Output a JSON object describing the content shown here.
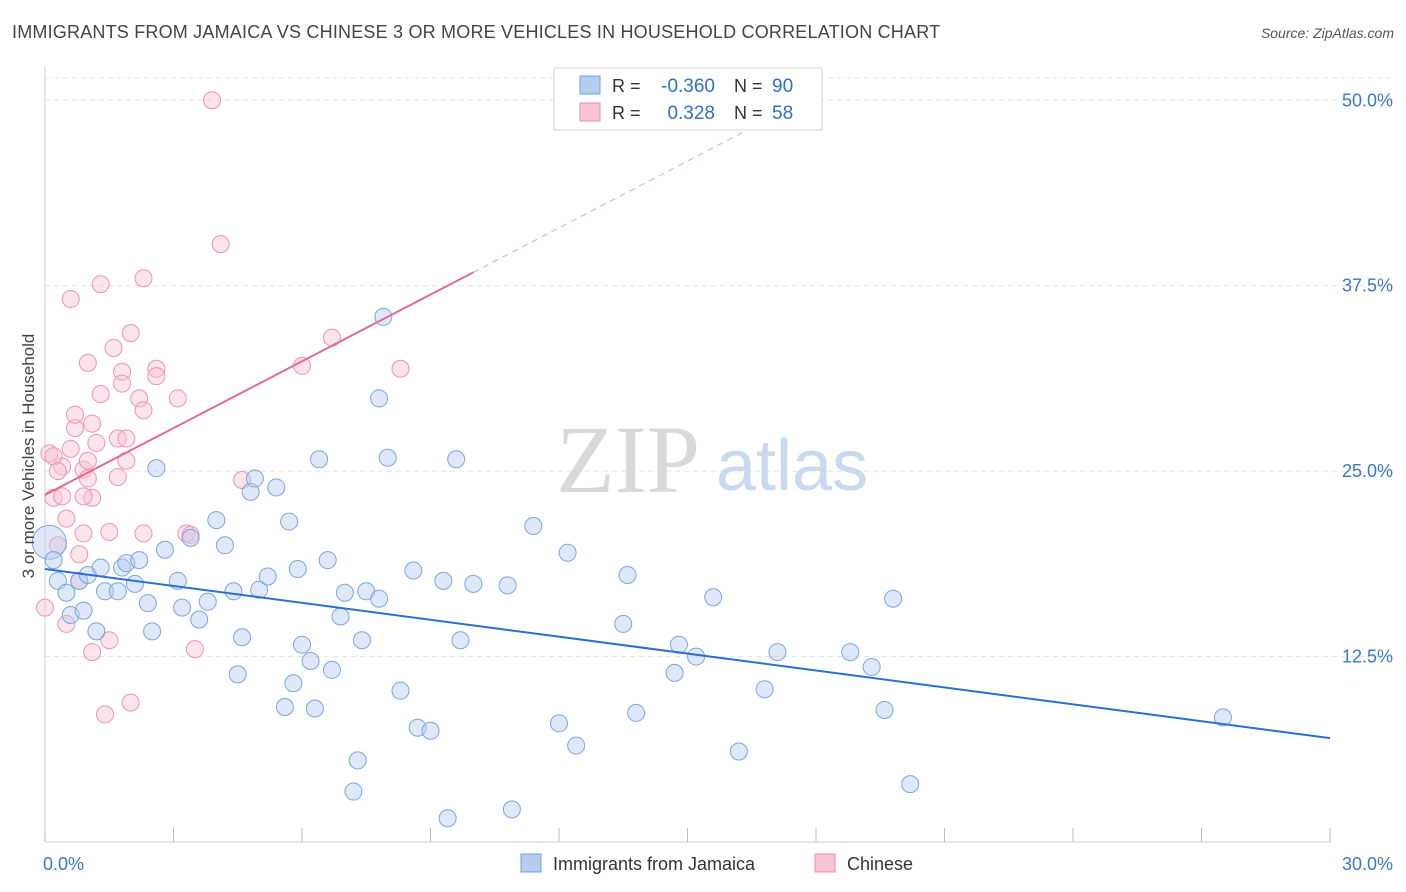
{
  "title": "IMMIGRANTS FROM JAMAICA VS CHINESE 3 OR MORE VEHICLES IN HOUSEHOLD CORRELATION CHART",
  "source": "Source: ZipAtlas.com",
  "watermark": {
    "zip": "ZIP",
    "atlas": "atlas"
  },
  "colors": {
    "blue": "#6fa0e0",
    "blue_line": "#2b6fd1",
    "pink": "#f08caa",
    "pink_line": "#e26b96",
    "axis_text": "#3a78c9"
  },
  "legend": {
    "rows": [
      {
        "r_label": "R =",
        "r_value": "-0.360",
        "n_label": "N =",
        "n_value": "90",
        "color": "#b7cdf0",
        "stroke": "#6fa0e0"
      },
      {
        "r_label": "R =",
        "r_value": "0.328",
        "n_label": "N =",
        "n_value": "58",
        "color": "#f8c3d3",
        "stroke": "#f08caa"
      }
    ]
  },
  "bottom_legend": [
    {
      "label": "Immigrants from Jamaica",
      "color": "#b7cdf0",
      "stroke": "#6fa0e0"
    },
    {
      "label": "Chinese",
      "color": "#f8c3d3",
      "stroke": "#f08caa"
    }
  ],
  "chart_data": {
    "type": "scatter",
    "title": "IMMIGRANTS FROM JAMAICA VS CHINESE 3 OR MORE VEHICLES IN HOUSEHOLD CORRELATION CHART",
    "xlabel": "",
    "ylabel": "3 or more Vehicles in Household",
    "xlim": [
      0,
      30
    ],
    "ylim": [
      0,
      51.5
    ],
    "x_tick_labels": [
      "0.0%",
      "30.0%"
    ],
    "y_ticks": [
      12.5,
      25.0,
      37.5,
      50.0
    ],
    "y_tick_labels": [
      "12.5%",
      "25.0%",
      "37.5%",
      "50.0%"
    ],
    "grid": true,
    "legend_position": "top-center",
    "series": [
      {
        "name": "Immigrants from Jamaica",
        "color": "#6fa0e0",
        "trend": {
          "x0": 0,
          "y0": 18.4,
          "x1": 30,
          "y1": 7.0
        },
        "points": [
          [
            0.1,
            20.2
          ],
          [
            0.2,
            19.0
          ],
          [
            0.3,
            17.6
          ],
          [
            0.5,
            16.8
          ],
          [
            0.6,
            15.3
          ],
          [
            0.9,
            15.6
          ],
          [
            0.8,
            17.6
          ],
          [
            1.0,
            18.0
          ],
          [
            1.2,
            14.2
          ],
          [
            1.3,
            18.5
          ],
          [
            1.4,
            16.9
          ],
          [
            1.7,
            16.9
          ],
          [
            1.8,
            18.5
          ],
          [
            1.9,
            18.8
          ],
          [
            2.1,
            17.4
          ],
          [
            2.2,
            19.0
          ],
          [
            2.4,
            16.1
          ],
          [
            2.5,
            14.2
          ],
          [
            2.6,
            25.2
          ],
          [
            2.8,
            19.7
          ],
          [
            3.1,
            17.6
          ],
          [
            3.2,
            15.8
          ],
          [
            3.4,
            20.5
          ],
          [
            3.6,
            15.0
          ],
          [
            3.8,
            16.2
          ],
          [
            4.0,
            21.7
          ],
          [
            4.2,
            20.0
          ],
          [
            4.4,
            16.9
          ],
          [
            4.5,
            11.3
          ],
          [
            4.6,
            13.8
          ],
          [
            4.8,
            23.6
          ],
          [
            4.9,
            24.5
          ],
          [
            5.0,
            17.0
          ],
          [
            5.2,
            17.9
          ],
          [
            5.4,
            23.9
          ],
          [
            5.6,
            9.1
          ],
          [
            5.7,
            21.6
          ],
          [
            5.8,
            10.7
          ],
          [
            5.9,
            18.4
          ],
          [
            6.0,
            13.3
          ],
          [
            6.2,
            12.2
          ],
          [
            6.3,
            9.0
          ],
          [
            6.4,
            25.8
          ],
          [
            6.6,
            19.0
          ],
          [
            6.7,
            11.6
          ],
          [
            6.9,
            15.2
          ],
          [
            7.0,
            16.8
          ],
          [
            7.2,
            3.4
          ],
          [
            7.3,
            5.5
          ],
          [
            7.4,
            13.6
          ],
          [
            7.5,
            16.9
          ],
          [
            7.8,
            16.4
          ],
          [
            7.8,
            29.9
          ],
          [
            7.9,
            35.4
          ],
          [
            8.0,
            25.9
          ],
          [
            8.3,
            10.2
          ],
          [
            8.6,
            18.3
          ],
          [
            8.7,
            7.7
          ],
          [
            9.0,
            7.5
          ],
          [
            9.3,
            17.6
          ],
          [
            9.4,
            1.6
          ],
          [
            9.6,
            25.8
          ],
          [
            9.7,
            13.6
          ],
          [
            10.0,
            17.4
          ],
          [
            10.8,
            17.3
          ],
          [
            10.9,
            2.2
          ],
          [
            11.4,
            21.3
          ],
          [
            12.0,
            8.0
          ],
          [
            12.4,
            6.5
          ],
          [
            12.2,
            19.5
          ],
          [
            13.5,
            14.7
          ],
          [
            13.6,
            18.0
          ],
          [
            13.8,
            8.7
          ],
          [
            14.7,
            11.4
          ],
          [
            14.8,
            13.3
          ],
          [
            15.2,
            12.5
          ],
          [
            15.6,
            16.5
          ],
          [
            16.2,
            6.1
          ],
          [
            16.8,
            10.3
          ],
          [
            17.1,
            12.8
          ],
          [
            18.8,
            12.8
          ],
          [
            19.3,
            11.8
          ],
          [
            19.6,
            8.9
          ],
          [
            19.8,
            16.4
          ],
          [
            20.2,
            3.9
          ],
          [
            27.5,
            8.4
          ]
        ]
      },
      {
        "name": "Chinese",
        "color": "#f08caa",
        "trend": {
          "x0": 0,
          "y0": 23.4,
          "x1": 10.0,
          "y1": 38.4,
          "dash_x1": 30.0,
          "dash_y1": 68.4
        },
        "points": [
          [
            0.0,
            15.8
          ],
          [
            0.1,
            26.2
          ],
          [
            0.2,
            23.2
          ],
          [
            0.3,
            20.0
          ],
          [
            0.4,
            25.3
          ],
          [
            0.5,
            21.8
          ],
          [
            0.5,
            14.7
          ],
          [
            0.6,
            26.5
          ],
          [
            0.6,
            36.6
          ],
          [
            0.7,
            27.9
          ],
          [
            0.7,
            28.8
          ],
          [
            0.8,
            19.4
          ],
          [
            0.8,
            17.6
          ],
          [
            0.9,
            20.8
          ],
          [
            0.9,
            25.1
          ],
          [
            1.0,
            25.7
          ],
          [
            1.0,
            32.3
          ],
          [
            1.1,
            23.2
          ],
          [
            1.1,
            28.2
          ],
          [
            1.1,
            12.8
          ],
          [
            1.2,
            26.9
          ],
          [
            1.3,
            37.6
          ],
          [
            1.3,
            30.2
          ],
          [
            1.4,
            8.6
          ],
          [
            1.5,
            20.9
          ],
          [
            1.5,
            13.6
          ],
          [
            1.6,
            33.3
          ],
          [
            1.7,
            24.6
          ],
          [
            1.7,
            27.2
          ],
          [
            1.8,
            31.7
          ],
          [
            1.8,
            30.9
          ],
          [
            1.9,
            25.7
          ],
          [
            1.9,
            27.2
          ],
          [
            2.0,
            9.4
          ],
          [
            2.0,
            34.3
          ],
          [
            2.2,
            29.9
          ],
          [
            2.3,
            38.0
          ],
          [
            2.3,
            29.1
          ],
          [
            2.3,
            20.8
          ],
          [
            2.6,
            31.9
          ],
          [
            2.6,
            31.4
          ],
          [
            3.1,
            29.9
          ],
          [
            3.3,
            20.8
          ],
          [
            3.4,
            20.7
          ],
          [
            3.5,
            13.0
          ],
          [
            3.9,
            50.0
          ],
          [
            4.1,
            40.3
          ],
          [
            4.6,
            24.4
          ],
          [
            6.0,
            32.1
          ],
          [
            6.7,
            34.0
          ],
          [
            8.3,
            31.9
          ],
          [
            0.2,
            26.0
          ],
          [
            0.3,
            25.0
          ],
          [
            0.4,
            23.3
          ],
          [
            0.9,
            23.3
          ],
          [
            1.0,
            24.5
          ]
        ]
      }
    ]
  }
}
